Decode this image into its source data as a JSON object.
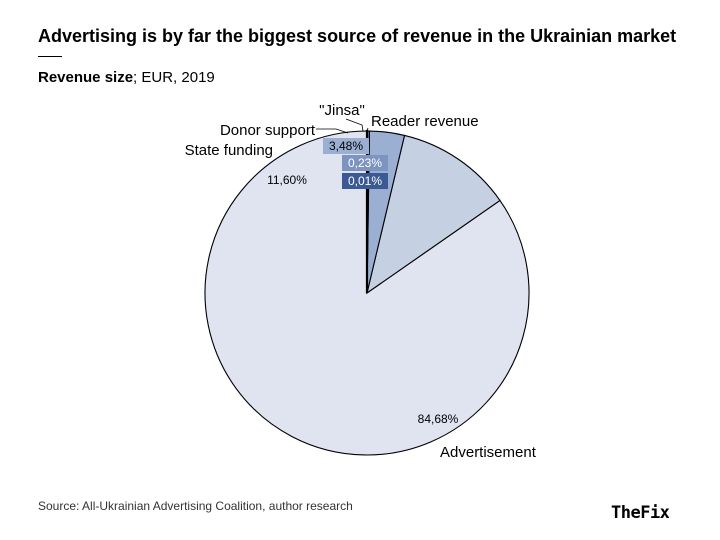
{
  "title": "Advertising is by far the biggest source of revenue in the Ukrainian market",
  "subtitle_bold": "Revenue size",
  "subtitle_rest": "; EUR, 2019",
  "source": "Source: All-Ukrainian Advertising Coalition, author research",
  "brand": "TheFix",
  "chart_data": {
    "type": "pie",
    "slices": [
      {
        "name": "Advertisement",
        "value": 84.68,
        "label": "84,68%",
        "color": "#dfe4f0"
      },
      {
        "name": "State funding",
        "value": 11.6,
        "label": "11,60%",
        "color": "#c5d0e3"
      },
      {
        "name": "Donor support",
        "value": 3.48,
        "label": "3,48%",
        "color": "#9aafd2"
      },
      {
        "name": "\"Jinsa\"",
        "value": 0.23,
        "label": "0,23%",
        "color": "#7d93c0"
      },
      {
        "name": "Reader revenue",
        "value": 0.01,
        "label": "0,01%",
        "color": "#3b5a93"
      }
    ],
    "start": "12 o'clock",
    "direction": "counter-clockwise",
    "stroke": "#000000"
  }
}
